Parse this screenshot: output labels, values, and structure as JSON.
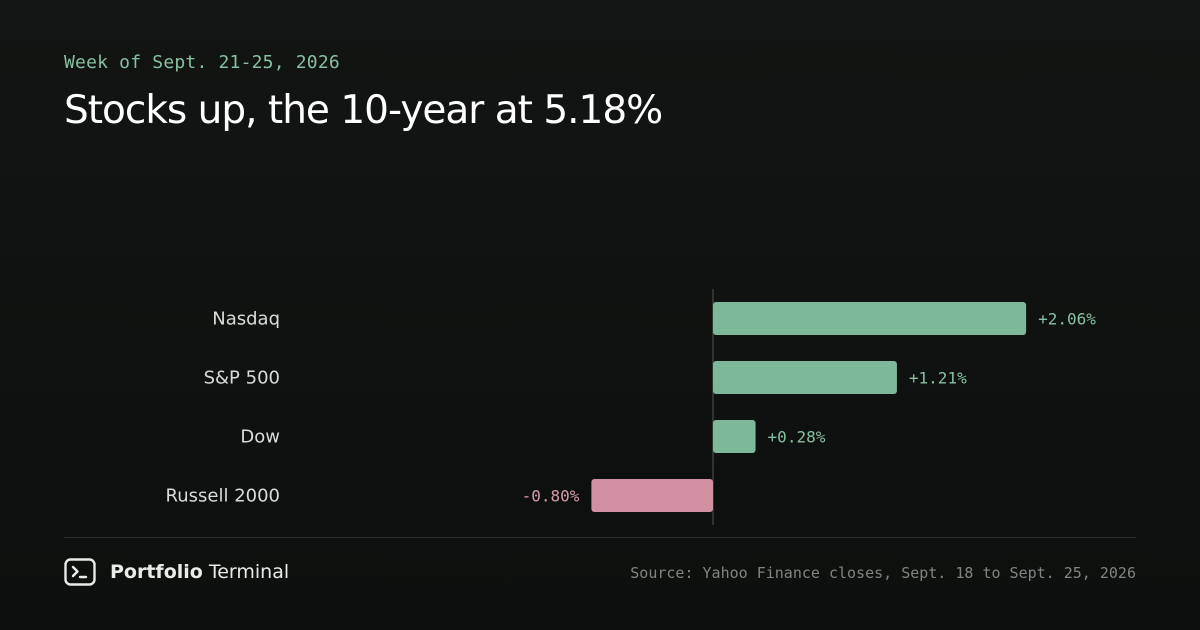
{
  "header": {
    "eyebrow": "Week of Sept. 21-25, 2026",
    "title": "Stocks up, the 10-year at 5.18%"
  },
  "chart_data": {
    "type": "bar",
    "orientation": "horizontal",
    "categories": [
      "Nasdaq",
      "S&P 500",
      "Dow",
      "Russell 2000"
    ],
    "values": [
      2.06,
      1.21,
      0.28,
      -0.8
    ],
    "value_labels": [
      "+2.06%",
      "+1.21%",
      "+0.28%",
      "-0.80%"
    ],
    "xlim": [
      -0.8,
      2.06
    ],
    "zero_line": true,
    "grid": false,
    "colors": {
      "positive": "#7db89a",
      "negative": "#d190a0",
      "positive_label": "#86c0a1",
      "negative_label": "#d69aa8",
      "category_label": "#d8ddda",
      "zero_line": "#3a3f3c"
    }
  },
  "footer": {
    "brand_bold": "Portfolio",
    "brand_light": "Terminal",
    "brand_icon": "terminal-icon",
    "source": "Source: Yahoo Finance closes, Sept. 18 to Sept. 25, 2026"
  }
}
